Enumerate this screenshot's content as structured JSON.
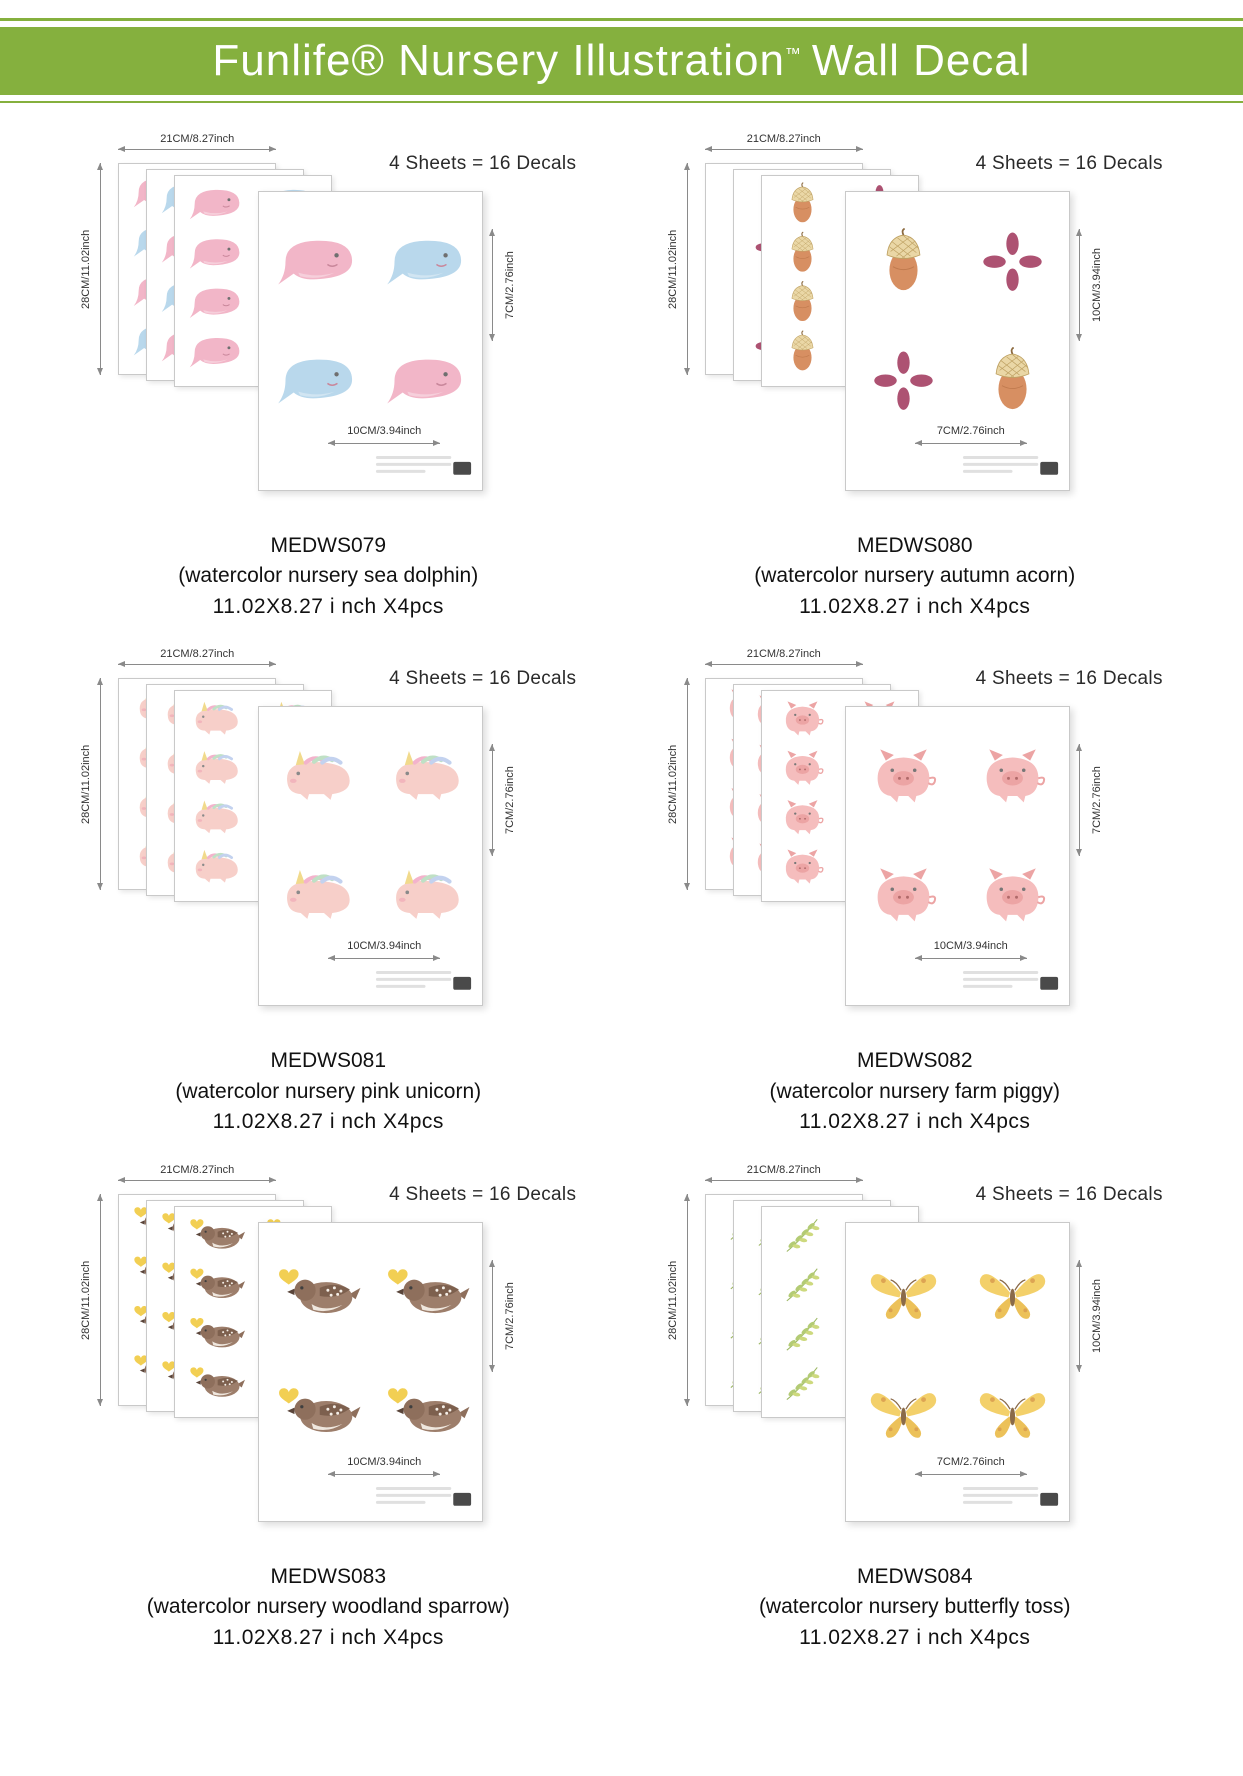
{
  "header": {
    "title_main": "Funlife® Nursery Illustration",
    "trademark": "™",
    "title_tail": "Wall Decal",
    "accent_color": "#85b03e"
  },
  "shared": {
    "sheets_equation": "4 Sheets = 16 Decals",
    "sheet_width": "21CM/8.27inch",
    "sheet_height": "28CM/11.02inch"
  },
  "products": [
    {
      "code": "MEDWS079",
      "name": "(watercolor nursery sea dolphin)",
      "size": "11.02X8.27 i nch X4pcs",
      "decal": "sea-dolphin-decal",
      "dims": {
        "v": "7CM/2.76inch",
        "h": "10CM/3.94inch"
      }
    },
    {
      "code": "MEDWS080",
      "name": "(watercolor nursery autumn acorn)",
      "size": "11.02X8.27 i nch X4pcs",
      "decal": "autumn-acorn-decal",
      "dims": {
        "v": "10CM/3.94inch",
        "h": "7CM/2.76inch"
      }
    },
    {
      "code": "MEDWS081",
      "name": "(watercolor nursery pink unicorn)",
      "size": "11.02X8.27 i nch X4pcs",
      "decal": "pink-unicorn-decal",
      "dims": {
        "v": "7CM/2.76inch",
        "h": "10CM/3.94inch"
      }
    },
    {
      "code": "MEDWS082",
      "name": "(watercolor nursery farm piggy)",
      "size": "11.02X8.27 i nch X4pcs",
      "decal": "farm-piggy-decal",
      "dims": {
        "v": "7CM/2.76inch",
        "h": "10CM/3.94inch"
      }
    },
    {
      "code": "MEDWS083",
      "name": "(watercolor nursery woodland sparrow)",
      "size": "11.02X8.27 i nch X4pcs",
      "decal": "woodland-sparrow-decal",
      "dims": {
        "v": "7CM/2.76inch",
        "h": "10CM/3.94inch"
      }
    },
    {
      "code": "MEDWS084",
      "name": "(watercolor nursery butterfly toss)",
      "size": "11.02X8.27 i nch X4pcs",
      "decal": "butterfly-toss-decal",
      "dims": {
        "v": "10CM/3.94inch",
        "h": "7CM/2.76inch"
      }
    }
  ]
}
